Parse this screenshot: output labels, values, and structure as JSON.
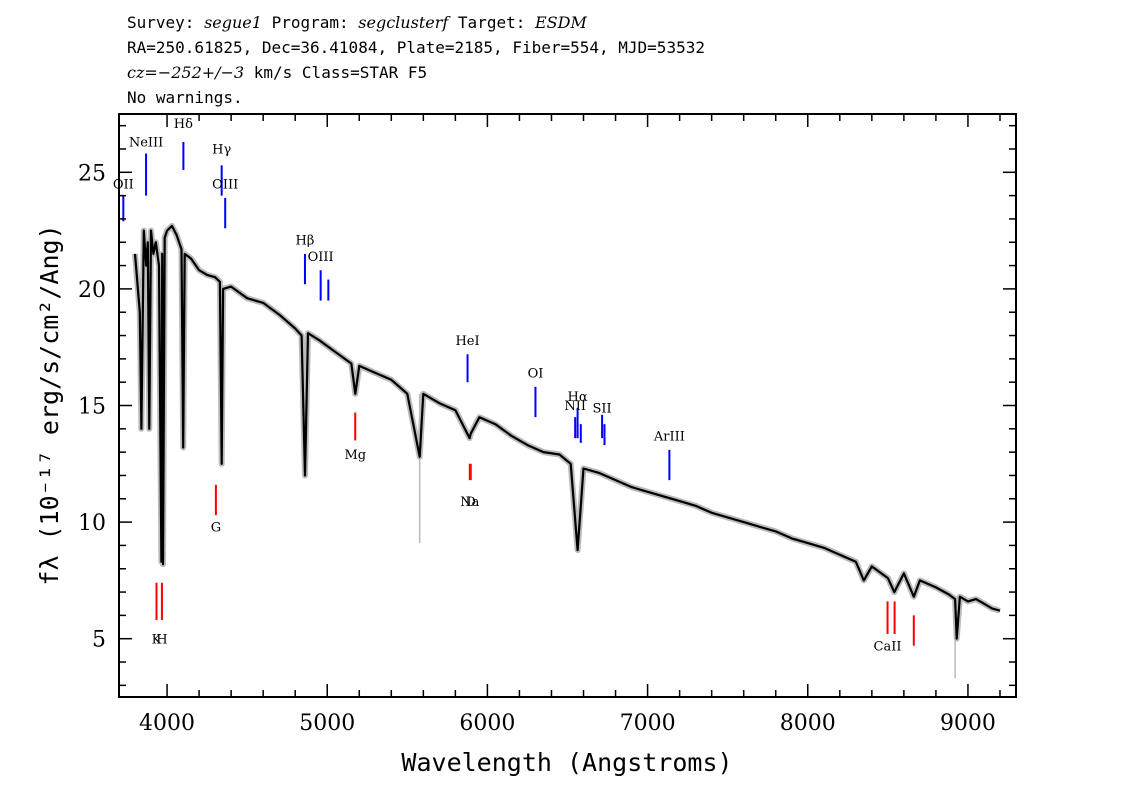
{
  "header": {
    "line1": {
      "survey_label": "Survey:",
      "survey": "segue1",
      "program_label": "Program:",
      "program": "segclusterf",
      "target_label": "Target:",
      "target": "ESDM"
    },
    "line2": "RA=250.61825, Dec=36.41084, Plate=2185, Fiber=554, MJD=53532",
    "line3": {
      "cz": "cz=−252+/−3",
      "rest": " km/s Class=STAR F5"
    },
    "line4": "No warnings."
  },
  "chart_data": {
    "type": "line",
    "xlabel": "Wavelength (Angstroms)",
    "ylabel": "fλ (10⁻¹⁷ erg/s/cm²/Ang)",
    "xlim": [
      3700,
      9300
    ],
    "ylim": [
      2.5,
      27.5
    ],
    "x_ticks": [
      4000,
      5000,
      6000,
      7000,
      8000,
      9000
    ],
    "y_ticks": [
      5,
      10,
      15,
      20,
      25
    ],
    "x_tick_labels": [
      "4000",
      "5000",
      "6000",
      "7000",
      "8000",
      "9000"
    ],
    "y_tick_labels": [
      "5",
      "10",
      "15",
      "20",
      "25"
    ],
    "grid": false,
    "series": [
      {
        "role": "spectrum",
        "color": "#000000",
        "x": [
          3800,
          3830,
          3840,
          3855,
          3870,
          3880,
          3889,
          3900,
          3915,
          3930,
          3950,
          3965,
          3970,
          3975,
          3985,
          4000,
          4030,
          4060,
          4090,
          4101,
          4110,
          4150,
          4200,
          4250,
          4300,
          4330,
          4341,
          4350,
          4400,
          4500,
          4600,
          4700,
          4800,
          4840,
          4861,
          4880,
          4950,
          5050,
          5150,
          5175,
          5200,
          5300,
          5400,
          5500,
          5577,
          5600,
          5700,
          5800,
          5889,
          5896,
          5950,
          6050,
          6150,
          6250,
          6350,
          6450,
          6520,
          6563,
          6600,
          6700,
          6800,
          6900,
          7000,
          7100,
          7200,
          7300,
          7400,
          7500,
          7600,
          7700,
          7800,
          7900,
          8000,
          8100,
          8200,
          8300,
          8350,
          8400,
          8500,
          8540,
          8600,
          8662,
          8700,
          8800,
          8880,
          8920,
          8930,
          8950,
          9000,
          9050,
          9100,
          9150,
          9200
        ],
        "y": [
          21.5,
          19.0,
          14.0,
          22.5,
          21.0,
          22.0,
          14.0,
          22.5,
          21.5,
          22.0,
          21.0,
          8.3,
          21.5,
          8.2,
          22.2,
          22.5,
          22.7,
          22.3,
          21.7,
          13.2,
          21.5,
          21.3,
          20.8,
          20.6,
          20.5,
          20.3,
          12.5,
          20.0,
          20.1,
          19.6,
          19.4,
          18.9,
          18.3,
          18.0,
          12.0,
          18.1,
          17.8,
          17.3,
          16.8,
          15.5,
          16.7,
          16.4,
          16.1,
          15.5,
          12.8,
          15.5,
          15.1,
          14.8,
          13.6,
          13.8,
          14.5,
          14.2,
          13.7,
          13.3,
          13.0,
          12.9,
          12.5,
          8.8,
          12.3,
          12.1,
          11.8,
          11.5,
          11.3,
          11.1,
          10.9,
          10.7,
          10.4,
          10.2,
          10.0,
          9.8,
          9.6,
          9.3,
          9.1,
          8.9,
          8.6,
          8.3,
          7.5,
          8.1,
          7.6,
          7.0,
          7.8,
          6.8,
          7.5,
          7.2,
          6.9,
          6.7,
          5.0,
          6.8,
          6.6,
          6.7,
          6.5,
          6.3,
          6.2
        ]
      },
      {
        "role": "noise-envelope",
        "color": "#bbbbbb",
        "x": [
          5577,
          5577,
          8920,
          8920
        ],
        "y": [
          15.5,
          9.1,
          6.7,
          3.3
        ]
      }
    ],
    "emission_lines": [
      {
        "label": "OII",
        "x": 3727,
        "y_from": 22.9,
        "y_to": 24.0,
        "label_y": 24.3,
        "color": "#0000ff"
      },
      {
        "label": "NeIII",
        "x": 3869,
        "y_from": 24.0,
        "y_to": 25.8,
        "label_y": 26.1,
        "color": "#0000ff"
      },
      {
        "label": "Hδ",
        "x": 4102,
        "y_from": 25.1,
        "y_to": 26.3,
        "label_y": 26.9,
        "color": "#0000ff"
      },
      {
        "label": "Hγ",
        "x": 4341,
        "y_from": 24.0,
        "y_to": 25.3,
        "label_y": 25.8,
        "color": "#0000ff"
      },
      {
        "label": "OIII",
        "x": 4363,
        "y_from": 22.6,
        "y_to": 23.9,
        "label_y": 24.3,
        "color": "#0000ff"
      },
      {
        "label": "Hβ",
        "x": 4861,
        "y_from": 20.2,
        "y_to": 21.5,
        "label_y": 21.9,
        "color": "#0000ff"
      },
      {
        "label": "OIII",
        "x": 4959,
        "y_from": 19.5,
        "y_to": 20.8,
        "label_y": 21.2,
        "color": "#0000ff"
      },
      {
        "label": "",
        "x": 5007,
        "y_from": 19.5,
        "y_to": 20.4,
        "label_y": 0,
        "color": "#0000ff"
      },
      {
        "label": "HeI",
        "x": 5876,
        "y_from": 16.0,
        "y_to": 17.2,
        "label_y": 17.6,
        "color": "#0000ff"
      },
      {
        "label": "OI",
        "x": 6300,
        "y_from": 14.5,
        "y_to": 15.8,
        "label_y": 16.2,
        "color": "#0000ff"
      },
      {
        "label": "NII",
        "x": 6548,
        "y_from": 13.6,
        "y_to": 14.5,
        "label_y": 14.8,
        "color": "#0000ff"
      },
      {
        "label": "Hα",
        "x": 6563,
        "y_from": 13.6,
        "y_to": 14.9,
        "label_y": 15.2,
        "color": "#0000ff"
      },
      {
        "label": "",
        "x": 6583,
        "y_from": 13.4,
        "y_to": 14.2,
        "label_y": 0,
        "color": "#0000ff"
      },
      {
        "label": "SII",
        "x": 6716,
        "y_from": 13.6,
        "y_to": 14.6,
        "label_y": 14.7,
        "color": "#0000ff"
      },
      {
        "label": "",
        "x": 6731,
        "y_from": 13.3,
        "y_to": 14.2,
        "label_y": 0,
        "color": "#0000ff"
      },
      {
        "label": "ArIII",
        "x": 7136,
        "y_from": 11.8,
        "y_to": 13.1,
        "label_y": 13.5,
        "color": "#0000ff"
      }
    ],
    "absorption_lines": [
      {
        "label": "K",
        "x": 3934,
        "y_from": 5.8,
        "y_to": 7.4,
        "label_y": 4.8,
        "color": "#ff0000"
      },
      {
        "label": "H",
        "x": 3968,
        "y_from": 5.8,
        "y_to": 7.4,
        "label_y": 4.8,
        "color": "#ff0000"
      },
      {
        "label": "G",
        "x": 4305,
        "y_from": 10.3,
        "y_to": 11.6,
        "label_y": 9.6,
        "color": "#ff0000"
      },
      {
        "label": "Mg",
        "x": 5175,
        "y_from": 13.5,
        "y_to": 14.7,
        "label_y": 12.7,
        "color": "#ff0000"
      },
      {
        "label": "Na",
        "x": 5890,
        "y_from": 11.8,
        "y_to": 12.5,
        "label_y": 10.7,
        "color": "#ff0000"
      },
      {
        "label": "D",
        "x": 5896,
        "y_from": 11.8,
        "y_to": 12.5,
        "label_y": 10.7,
        "color": "#ff0000"
      },
      {
        "label": "CaII",
        "x": 8498,
        "y_from": 5.2,
        "y_to": 6.6,
        "label_y": 4.5,
        "color": "#ff0000"
      },
      {
        "label": "",
        "x": 8542,
        "y_from": 5.2,
        "y_to": 6.6,
        "label_y": 0,
        "color": "#ff0000"
      },
      {
        "label": "",
        "x": 8662,
        "y_from": 4.7,
        "y_to": 6.0,
        "label_y": 0,
        "color": "#ff0000"
      }
    ]
  }
}
